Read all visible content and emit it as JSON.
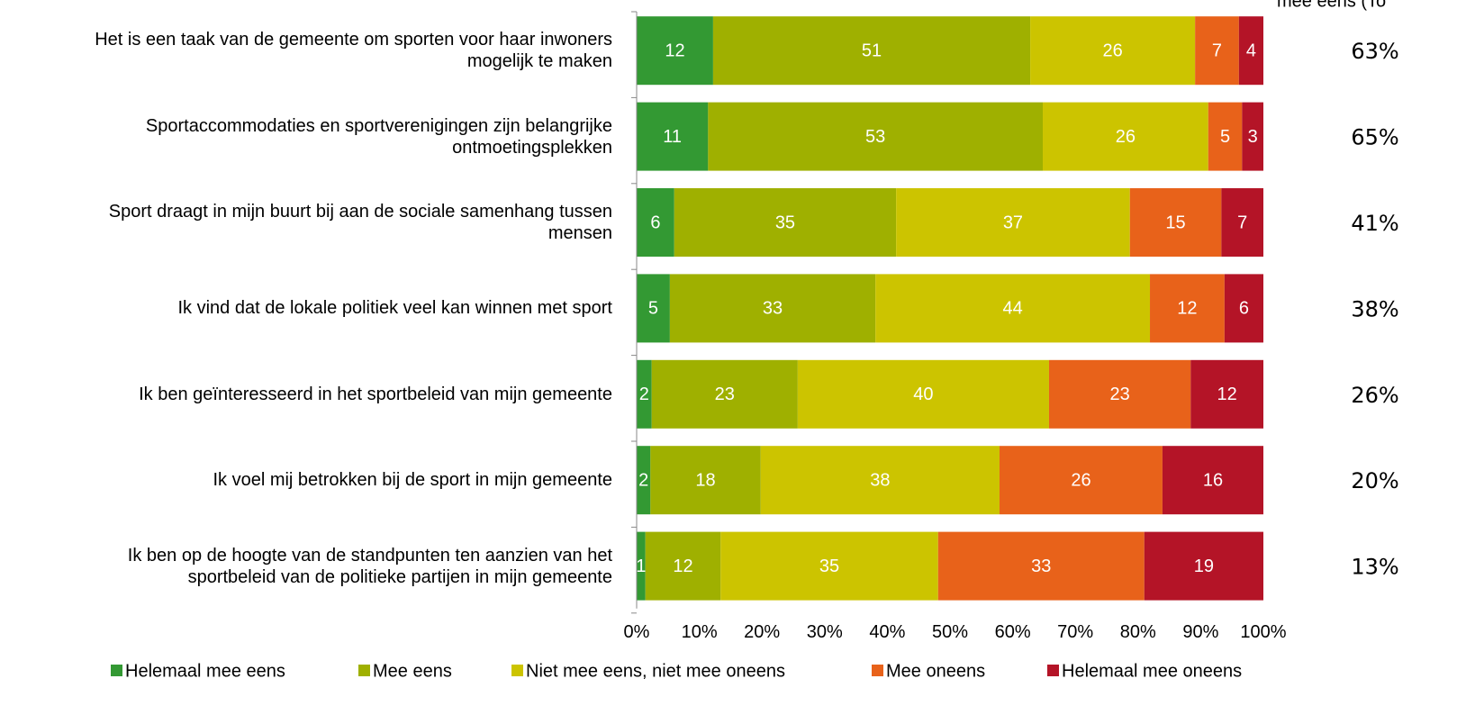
{
  "chart_data": {
    "type": "stacked_barh",
    "categories": [
      "Het is een taak van de gemeente om sporten voor haar inwoners\nmogelijk te maken",
      "Sportaccommodaties en sportverenigingen zijn belangrijke\nontmoetingsplekken",
      "Sport draagt in mijn buurt bij aan de sociale samenhang tussen\nmensen",
      "Ik vind dat de lokale politiek veel kan winnen met sport",
      "Ik ben geïnteresseerd in het sportbeleid van mijn gemeente",
      "Ik voel mij betrokken bij de sport in mijn gemeente",
      "Ik ben op de hoogte van de standpunten ten aanzien van het\nsportbeleid van de politieke partijen in mijn gemeente"
    ],
    "series": [
      {
        "name": "Helemaal mee eens",
        "color": "#339933",
        "values": [
          12.2,
          11.4,
          6.0,
          5.3,
          2.4,
          2.2,
          1.4
        ],
        "value_labels": [
          "12",
          "11",
          "6",
          "5",
          "2",
          "2",
          "1"
        ]
      },
      {
        "name": "Mee eens",
        "color": "#9fb000",
        "values": [
          50.6,
          53.4,
          35.4,
          32.8,
          23.3,
          17.6,
          12.0
        ],
        "value_labels": [
          "51",
          "53",
          "35",
          "33",
          "23",
          "18",
          "12"
        ]
      },
      {
        "name": "Niet mee eens, niet mee oneens",
        "color": "#ccc400",
        "values": [
          26.3,
          26.4,
          37.3,
          43.8,
          40.1,
          38.1,
          34.7
        ],
        "value_labels": [
          "26",
          "26",
          "37",
          "44",
          "40",
          "38",
          "35"
        ]
      },
      {
        "name": "Mee oneens",
        "color": "#e8621a",
        "values": [
          7.0,
          5.4,
          14.6,
          11.9,
          22.6,
          26.0,
          32.9
        ],
        "value_labels": [
          "7",
          "5",
          "15",
          "12",
          "23",
          "26",
          "33"
        ]
      },
      {
        "name": "Helemaal mee oneens",
        "color": "#b41427",
        "values": [
          3.9,
          3.4,
          6.7,
          6.2,
          11.6,
          16.1,
          19.0
        ],
        "value_labels": [
          "4",
          "3",
          "7",
          "6",
          "12",
          "16",
          "19"
        ]
      }
    ],
    "xlim": [
      0,
      100
    ],
    "xticks": [
      {
        "value": 0,
        "label": "0%"
      },
      {
        "value": 10,
        "label": "10%"
      },
      {
        "value": 20,
        "label": "20%"
      },
      {
        "value": 30,
        "label": "30%"
      },
      {
        "value": 40,
        "label": "40%"
      },
      {
        "value": 50,
        "label": "50%"
      },
      {
        "value": 60,
        "label": "60%"
      },
      {
        "value": 70,
        "label": "70%"
      },
      {
        "value": 80,
        "label": "80%"
      },
      {
        "value": 90,
        "label": "90%"
      },
      {
        "value": 100,
        "label": "100%"
      }
    ],
    "grid": false,
    "legend": "bottom",
    "right_column": {
      "header": "mee eens (To",
      "values": [
        63,
        65,
        41,
        38,
        26,
        20,
        13
      ],
      "value_labels": [
        "63%",
        "65%",
        "41%",
        "38%",
        "26%",
        "20%",
        "13%"
      ]
    }
  }
}
